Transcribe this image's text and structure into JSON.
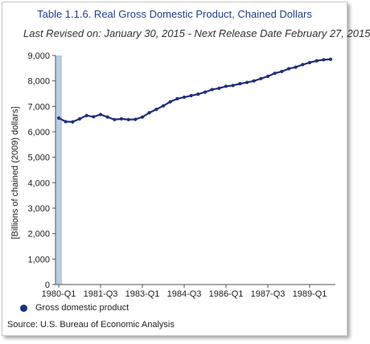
{
  "chart_data": {
    "type": "line",
    "title": "Table 1.1.6. Real Gross Domestic Product, Chained Dollars",
    "subtitle": "Last Revised on: January 30, 2015 - Next Release Date February 27, 2015",
    "xlabel": "",
    "ylabel": "[Billions of chained (2009) dollars]",
    "ylim": [
      0,
      9000
    ],
    "yticks": [
      0,
      1000,
      2000,
      3000,
      4000,
      5000,
      6000,
      7000,
      8000,
      9000
    ],
    "ytick_labels": [
      "0",
      "1,000",
      "2,000",
      "3,000",
      "4,000",
      "5,000",
      "6,000",
      "7,000",
      "8,000",
      "9,000"
    ],
    "xtick_labels": [
      "1980-Q1",
      "1981-Q3",
      "1983-Q1",
      "1984-Q3",
      "1986-Q1",
      "1987-Q3",
      "1989-Q1"
    ],
    "grid": false,
    "legend_position": "bottom-left",
    "colors": {
      "series": "#1f2f7a",
      "highlight_band": "#b8cde3",
      "axis": "#555555"
    },
    "x": [
      "1980-Q1",
      "1980-Q2",
      "1980-Q3",
      "1980-Q4",
      "1981-Q1",
      "1981-Q2",
      "1981-Q3",
      "1981-Q4",
      "1982-Q1",
      "1982-Q2",
      "1982-Q3",
      "1982-Q4",
      "1983-Q1",
      "1983-Q2",
      "1983-Q3",
      "1983-Q4",
      "1984-Q1",
      "1984-Q2",
      "1984-Q3",
      "1984-Q4",
      "1985-Q1",
      "1985-Q2",
      "1985-Q3",
      "1985-Q4",
      "1986-Q1",
      "1986-Q2",
      "1986-Q3",
      "1986-Q4",
      "1987-Q1",
      "1987-Q2",
      "1987-Q3",
      "1987-Q4",
      "1988-Q1",
      "1988-Q2",
      "1988-Q3",
      "1988-Q4",
      "1989-Q1",
      "1989-Q2",
      "1989-Q3",
      "1989-Q4"
    ],
    "series": [
      {
        "name": "Gross domestic product",
        "values": [
          6540,
          6400,
          6390,
          6510,
          6640,
          6590,
          6680,
          6580,
          6480,
          6510,
          6480,
          6490,
          6580,
          6750,
          6880,
          7020,
          7180,
          7300,
          7360,
          7420,
          7480,
          7560,
          7660,
          7710,
          7790,
          7820,
          7890,
          7940,
          8000,
          8090,
          8180,
          8300,
          8370,
          8480,
          8540,
          8640,
          8720,
          8790,
          8830,
          8850
        ]
      }
    ]
  },
  "legend": {
    "label": "Gross domestic product"
  },
  "source": "Source: U.S. Bureau of Economic  Analysis"
}
